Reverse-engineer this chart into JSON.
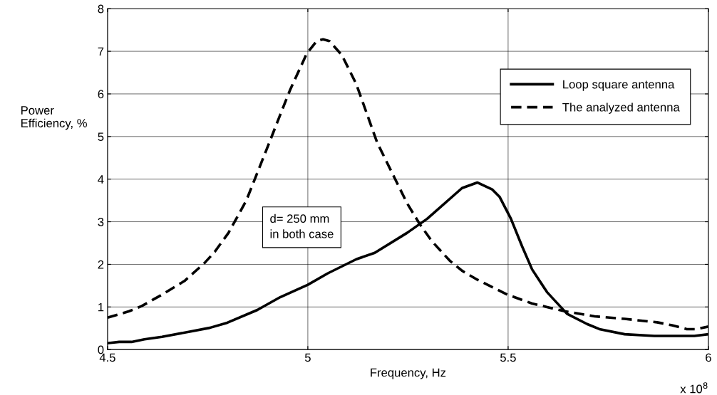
{
  "chart_data": {
    "type": "line",
    "xlabel": "Frequency, Hz",
    "ylabel": "Power\nEfficiency, %",
    "xlim": [
      4.5,
      6
    ],
    "xticks": [
      4.5,
      5,
      5.5,
      6
    ],
    "ylim": [
      0,
      8
    ],
    "yticks": [
      0,
      1,
      2,
      3,
      4,
      5,
      6,
      7,
      8
    ],
    "grid": true,
    "legend": "top right",
    "marker": "none",
    "annotations": [
      "d= 250 mm\nin both case",
      "x 10$^{8}$"
    ],
    "series": [
      {
        "name": "Loop square antenna",
        "color": "#000000",
        "line_style": "solid",
        "x": [
          4.5,
          4.529,
          4.56,
          4.592,
          4.636,
          4.705,
          4.755,
          4.799,
          4.874,
          4.931,
          5.0,
          5.05,
          5.121,
          5.167,
          5.248,
          5.298,
          5.385,
          5.423,
          5.46,
          5.479,
          5.507,
          5.535,
          5.56,
          5.597,
          5.647,
          5.697,
          5.728,
          5.791,
          5.865,
          5.965,
          6.0
        ],
        "values": [
          0.15,
          0.18,
          0.18,
          0.24,
          0.3,
          0.42,
          0.51,
          0.63,
          0.93,
          1.23,
          1.52,
          1.79,
          2.12,
          2.27,
          2.74,
          3.07,
          3.79,
          3.92,
          3.76,
          3.58,
          3.07,
          2.42,
          1.88,
          1.35,
          0.84,
          0.6,
          0.48,
          0.36,
          0.32,
          0.32,
          0.36
        ]
      },
      {
        "name": "The analyzed antenna",
        "color": "#000000",
        "line_style": "dashed",
        "x": [
          4.5,
          4.554,
          4.585,
          4.636,
          4.692,
          4.742,
          4.768,
          4.802,
          4.846,
          4.871,
          4.909,
          4.931,
          4.956,
          4.997,
          5.022,
          5.038,
          5.054,
          5.085,
          5.121,
          5.173,
          5.217,
          5.248,
          5.279,
          5.31,
          5.354,
          5.385,
          5.423,
          5.498,
          5.56,
          5.641,
          5.716,
          5.791,
          5.872,
          5.909,
          5.946,
          5.971,
          6.0
        ],
        "values": [
          0.75,
          0.9,
          1.02,
          1.29,
          1.61,
          2.03,
          2.3,
          2.74,
          3.49,
          4.08,
          4.98,
          5.51,
          6.1,
          6.94,
          7.24,
          7.28,
          7.24,
          6.91,
          6.23,
          4.86,
          4.02,
          3.43,
          2.95,
          2.54,
          2.09,
          1.85,
          1.64,
          1.29,
          1.08,
          0.9,
          0.78,
          0.72,
          0.64,
          0.57,
          0.48,
          0.48,
          0.54
        ]
      }
    ]
  }
}
